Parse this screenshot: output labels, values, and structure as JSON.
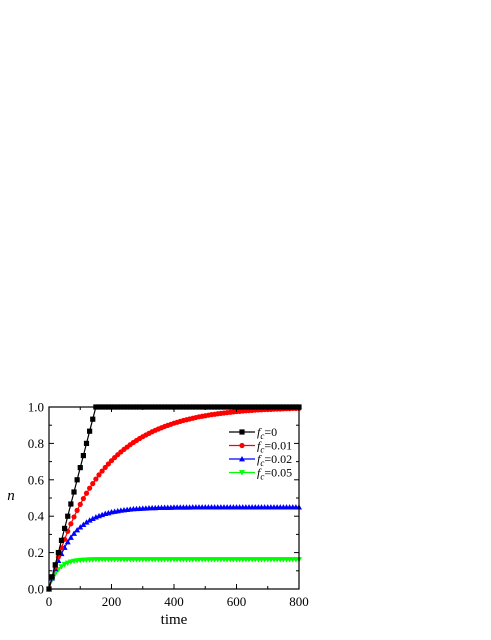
{
  "chart_data": {
    "type": "line",
    "title": "",
    "xlabel": "time",
    "ylabel": "n",
    "xlim": [
      0,
      800
    ],
    "ylim": [
      0.0,
      1.0
    ],
    "xticks": [
      0,
      200,
      400,
      600,
      800
    ],
    "xtick_labels": [
      "0",
      "200",
      "400",
      "600",
      "800"
    ],
    "yticks": [
      0.0,
      0.2,
      0.4,
      0.6,
      0.8,
      1.0
    ],
    "ytick_labels": [
      "0.0",
      "0.2",
      "0.4",
      "0.6",
      "0.8",
      "1.0"
    ],
    "grid": false,
    "legend_position": "right",
    "series": [
      {
        "name": "f_c=0",
        "legend_var": "f",
        "legend_sub": "c",
        "legend_value": "=0",
        "color": "#000000",
        "marker": "square",
        "x": [
          0,
          10,
          20,
          30,
          40,
          50,
          60,
          70,
          80,
          90,
          100,
          110,
          120,
          130,
          140,
          150,
          160,
          170,
          180,
          190,
          200,
          210,
          220,
          230,
          240,
          250,
          260,
          270,
          280,
          290,
          300,
          310,
          320,
          330,
          340,
          350,
          360,
          370,
          380,
          390,
          400,
          410,
          420,
          430,
          440,
          450,
          460,
          470,
          480,
          490,
          500,
          510,
          520,
          530,
          540,
          550,
          560,
          570,
          580,
          590,
          600,
          610,
          620,
          630,
          640,
          650,
          660,
          670,
          680,
          690,
          700,
          710,
          720,
          730,
          740,
          750,
          760,
          770,
          780,
          790,
          800
        ],
        "y": [
          0.0,
          0.067,
          0.133,
          0.2,
          0.267,
          0.333,
          0.4,
          0.467,
          0.533,
          0.6,
          0.667,
          0.733,
          0.8,
          0.867,
          0.933,
          1.0,
          1.0,
          1.0,
          1.0,
          1.0,
          1.0,
          1.0,
          1.0,
          1.0,
          1.0,
          1.0,
          1.0,
          1.0,
          1.0,
          1.0,
          1.0,
          1.0,
          1.0,
          1.0,
          1.0,
          1.0,
          1.0,
          1.0,
          1.0,
          1.0,
          1.0,
          1.0,
          1.0,
          1.0,
          1.0,
          1.0,
          1.0,
          1.0,
          1.0,
          1.0,
          1.0,
          1.0,
          1.0,
          1.0,
          1.0,
          1.0,
          1.0,
          1.0,
          1.0,
          1.0,
          1.0,
          1.0,
          1.0,
          1.0,
          1.0,
          1.0,
          1.0,
          1.0,
          1.0,
          1.0,
          1.0,
          1.0,
          1.0,
          1.0,
          1.0,
          1.0,
          1.0,
          1.0,
          1.0,
          1.0,
          1.0
        ]
      },
      {
        "name": "f_c=0.01",
        "legend_var": "f",
        "legend_sub": "c",
        "legend_value": "=0.01",
        "color": "#ff0000",
        "marker": "circle",
        "x": [
          0,
          10,
          20,
          30,
          40,
          50,
          60,
          70,
          80,
          90,
          100,
          110,
          120,
          130,
          140,
          150,
          160,
          170,
          180,
          190,
          200,
          210,
          220,
          230,
          240,
          250,
          260,
          270,
          280,
          290,
          300,
          310,
          320,
          330,
          340,
          350,
          360,
          370,
          380,
          390,
          400,
          410,
          420,
          430,
          440,
          450,
          460,
          470,
          480,
          490,
          500,
          510,
          520,
          530,
          540,
          550,
          560,
          570,
          580,
          590,
          600,
          610,
          620,
          630,
          640,
          650,
          660,
          670,
          680,
          690,
          700,
          710,
          720,
          730,
          740,
          750,
          760,
          770,
          780,
          790,
          800
        ],
        "y": [
          0.0,
          0.063,
          0.121,
          0.176,
          0.226,
          0.273,
          0.317,
          0.358,
          0.396,
          0.432,
          0.465,
          0.497,
          0.526,
          0.554,
          0.579,
          0.604,
          0.627,
          0.648,
          0.668,
          0.687,
          0.705,
          0.722,
          0.738,
          0.753,
          0.767,
          0.78,
          0.793,
          0.805,
          0.816,
          0.827,
          0.837,
          0.846,
          0.855,
          0.864,
          0.872,
          0.879,
          0.886,
          0.893,
          0.899,
          0.905,
          0.911,
          0.916,
          0.921,
          0.926,
          0.93,
          0.934,
          0.938,
          0.942,
          0.946,
          0.949,
          0.952,
          0.955,
          0.958,
          0.96,
          0.963,
          0.965,
          0.967,
          0.969,
          0.971,
          0.973,
          0.975,
          0.976,
          0.978,
          0.979,
          0.98,
          0.981,
          0.983,
          0.984,
          0.985,
          0.986,
          0.986,
          0.987,
          0.988,
          0.989,
          0.989,
          0.99,
          0.991,
          0.991,
          0.992,
          0.992,
          0.993
        ]
      },
      {
        "name": "f_c=0.02",
        "legend_var": "f",
        "legend_sub": "c",
        "legend_value": "=0.02",
        "color": "#0000ff",
        "marker": "triangle-up",
        "x": [
          0,
          10,
          20,
          30,
          40,
          50,
          60,
          70,
          80,
          90,
          100,
          110,
          120,
          130,
          140,
          150,
          160,
          170,
          180,
          190,
          200,
          210,
          220,
          230,
          240,
          250,
          260,
          270,
          280,
          290,
          300,
          310,
          320,
          330,
          340,
          350,
          360,
          370,
          380,
          390,
          400,
          410,
          420,
          430,
          440,
          450,
          460,
          470,
          480,
          490,
          500,
          510,
          520,
          530,
          540,
          550,
          560,
          570,
          580,
          590,
          600,
          610,
          620,
          630,
          640,
          650,
          660,
          670,
          680,
          690,
          700,
          710,
          720,
          730,
          740,
          750,
          760,
          770,
          780,
          790,
          800
        ],
        "y": [
          0.0,
          0.06,
          0.111,
          0.156,
          0.194,
          0.228,
          0.258,
          0.283,
          0.305,
          0.324,
          0.34,
          0.354,
          0.367,
          0.378,
          0.387,
          0.395,
          0.402,
          0.408,
          0.414,
          0.418,
          0.423,
          0.426,
          0.429,
          0.432,
          0.434,
          0.436,
          0.438,
          0.44,
          0.441,
          0.442,
          0.443,
          0.444,
          0.445,
          0.446,
          0.446,
          0.447,
          0.447,
          0.448,
          0.448,
          0.448,
          0.449,
          0.449,
          0.449,
          0.449,
          0.449,
          0.449,
          0.45,
          0.45,
          0.45,
          0.45,
          0.45,
          0.45,
          0.45,
          0.45,
          0.45,
          0.45,
          0.45,
          0.45,
          0.45,
          0.45,
          0.45,
          0.45,
          0.45,
          0.45,
          0.45,
          0.45,
          0.45,
          0.45,
          0.45,
          0.45,
          0.45,
          0.45,
          0.45,
          0.45,
          0.45,
          0.45,
          0.45,
          0.45,
          0.45,
          0.45,
          0.45
        ]
      },
      {
        "name": "f_c=0.05",
        "legend_var": "f",
        "legend_sub": "c",
        "legend_value": "=0.05",
        "color": "#00ff00",
        "marker": "triangle-down",
        "x": [
          0,
          10,
          20,
          30,
          40,
          50,
          60,
          70,
          80,
          90,
          100,
          110,
          120,
          130,
          140,
          150,
          160,
          170,
          180,
          190,
          200,
          210,
          220,
          230,
          240,
          250,
          260,
          270,
          280,
          290,
          300,
          310,
          320,
          330,
          340,
          350,
          360,
          370,
          380,
          390,
          400,
          410,
          420,
          430,
          440,
          450,
          460,
          470,
          480,
          490,
          500,
          510,
          520,
          530,
          540,
          550,
          560,
          570,
          580,
          590,
          600,
          610,
          620,
          630,
          640,
          650,
          660,
          670,
          680,
          690,
          700,
          710,
          720,
          730,
          740,
          750,
          760,
          770,
          780,
          790,
          800
        ],
        "y": [
          0.0,
          0.05,
          0.083,
          0.107,
          0.123,
          0.135,
          0.143,
          0.149,
          0.153,
          0.156,
          0.158,
          0.159,
          0.16,
          0.161,
          0.161,
          0.162,
          0.162,
          0.162,
          0.162,
          0.162,
          0.162,
          0.162,
          0.162,
          0.162,
          0.162,
          0.162,
          0.162,
          0.162,
          0.162,
          0.162,
          0.162,
          0.162,
          0.162,
          0.162,
          0.162,
          0.162,
          0.162,
          0.162,
          0.162,
          0.162,
          0.162,
          0.162,
          0.162,
          0.162,
          0.162,
          0.162,
          0.162,
          0.162,
          0.162,
          0.162,
          0.162,
          0.162,
          0.162,
          0.162,
          0.162,
          0.162,
          0.162,
          0.162,
          0.162,
          0.162,
          0.162,
          0.162,
          0.162,
          0.162,
          0.162,
          0.162,
          0.162,
          0.162,
          0.162,
          0.162,
          0.162,
          0.162,
          0.162,
          0.162,
          0.162,
          0.162,
          0.162,
          0.162,
          0.162,
          0.162,
          0.162
        ]
      }
    ]
  }
}
